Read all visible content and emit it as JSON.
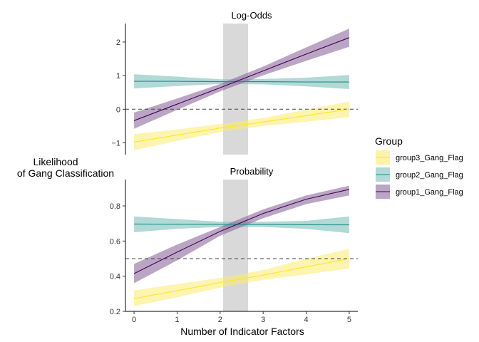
{
  "chart_data": {
    "type": "line",
    "ylabel_lines": [
      "Likelihood",
      "of Gang Classification"
    ],
    "xlabel": "Number of Indicator Factors",
    "x_ticks": [
      0,
      1,
      2,
      3,
      4,
      5
    ],
    "xlim": [
      -0.2,
      5.2
    ],
    "shaded_band": [
      2.07,
      2.65
    ],
    "legend": {
      "title": "Group",
      "position": "right",
      "entries": [
        "group3_Gang_Flag",
        "group2_Gang_Flag",
        "group1_Gang_Flag"
      ]
    },
    "series_styles": {
      "group1_Gang_Flag": {
        "line": "#440154",
        "fill": "#8C6B9C"
      },
      "group2_Gang_Flag": {
        "line": "#21908C",
        "fill": "#7DBFB9"
      },
      "group3_Gang_Flag": {
        "line": "#FDE725",
        "fill": "#FCEB6D"
      }
    },
    "panels": [
      {
        "title": "Log-Odds",
        "ylim": [
          -1.35,
          2.55
        ],
        "y_ticks": [
          -1,
          0,
          1,
          2
        ],
        "reference_line": 0,
        "series": [
          {
            "name": "group1_Gang_Flag",
            "x": [
              0,
              1,
              2,
              3,
              4,
              5
            ],
            "y": [
              -0.34,
              0.15,
              0.64,
              1.14,
              1.64,
              2.13
            ],
            "lower": [
              -0.58,
              -0.02,
              0.53,
              1.01,
              1.44,
              1.86
            ],
            "upper": [
              -0.1,
              0.32,
              0.75,
              1.27,
              1.84,
              2.4
            ]
          },
          {
            "name": "group2_Gang_Flag",
            "x": [
              0,
              1,
              2,
              3,
              4,
              5
            ],
            "y": [
              0.83,
              0.83,
              0.82,
              0.82,
              0.81,
              0.81
            ],
            "lower": [
              0.62,
              0.69,
              0.75,
              0.74,
              0.68,
              0.6
            ],
            "upper": [
              1.04,
              0.97,
              0.89,
              0.9,
              0.94,
              1.02
            ]
          },
          {
            "name": "group3_Gang_Flag",
            "x": [
              0,
              1,
              2,
              3,
              4,
              5
            ],
            "y": [
              -0.98,
              -0.77,
              -0.56,
              -0.38,
              -0.19,
              0.0
            ],
            "lower": [
              -1.22,
              -0.94,
              -0.68,
              -0.5,
              -0.37,
              -0.23
            ],
            "upper": [
              -0.74,
              -0.6,
              -0.44,
              -0.26,
              -0.01,
              0.23
            ]
          }
        ]
      },
      {
        "title": "Probability",
        "ylim": [
          0.2,
          0.95
        ],
        "y_ticks": [
          0.2,
          0.4,
          0.6,
          0.8
        ],
        "reference_line": 0.5,
        "series": [
          {
            "name": "group1_Gang_Flag",
            "x": [
              0,
              1,
              2,
              3,
              4,
              5
            ],
            "y": [
              0.415,
              0.537,
              0.655,
              0.757,
              0.838,
              0.894
            ],
            "lower": [
              0.36,
              0.49,
              0.63,
              0.73,
              0.81,
              0.86
            ],
            "upper": [
              0.47,
              0.58,
              0.68,
              0.78,
              0.86,
              0.915
            ]
          },
          {
            "name": "group2_Gang_Flag",
            "x": [
              0,
              1,
              2,
              3,
              4,
              5
            ],
            "y": [
              0.697,
              0.696,
              0.695,
              0.694,
              0.693,
              0.692
            ],
            "lower": [
              0.65,
              0.67,
              0.68,
              0.68,
              0.67,
              0.645
            ],
            "upper": [
              0.74,
              0.725,
              0.71,
              0.71,
              0.715,
              0.74
            ]
          },
          {
            "name": "group3_Gang_Flag",
            "x": [
              0,
              1,
              2,
              3,
              4,
              5
            ],
            "y": [
              0.273,
              0.317,
              0.364,
              0.406,
              0.453,
              0.5
            ],
            "lower": [
              0.23,
              0.28,
              0.335,
              0.38,
              0.41,
              0.445
            ],
            "upper": [
              0.32,
              0.355,
              0.39,
              0.435,
              0.5,
              0.555
            ]
          }
        ]
      }
    ]
  }
}
